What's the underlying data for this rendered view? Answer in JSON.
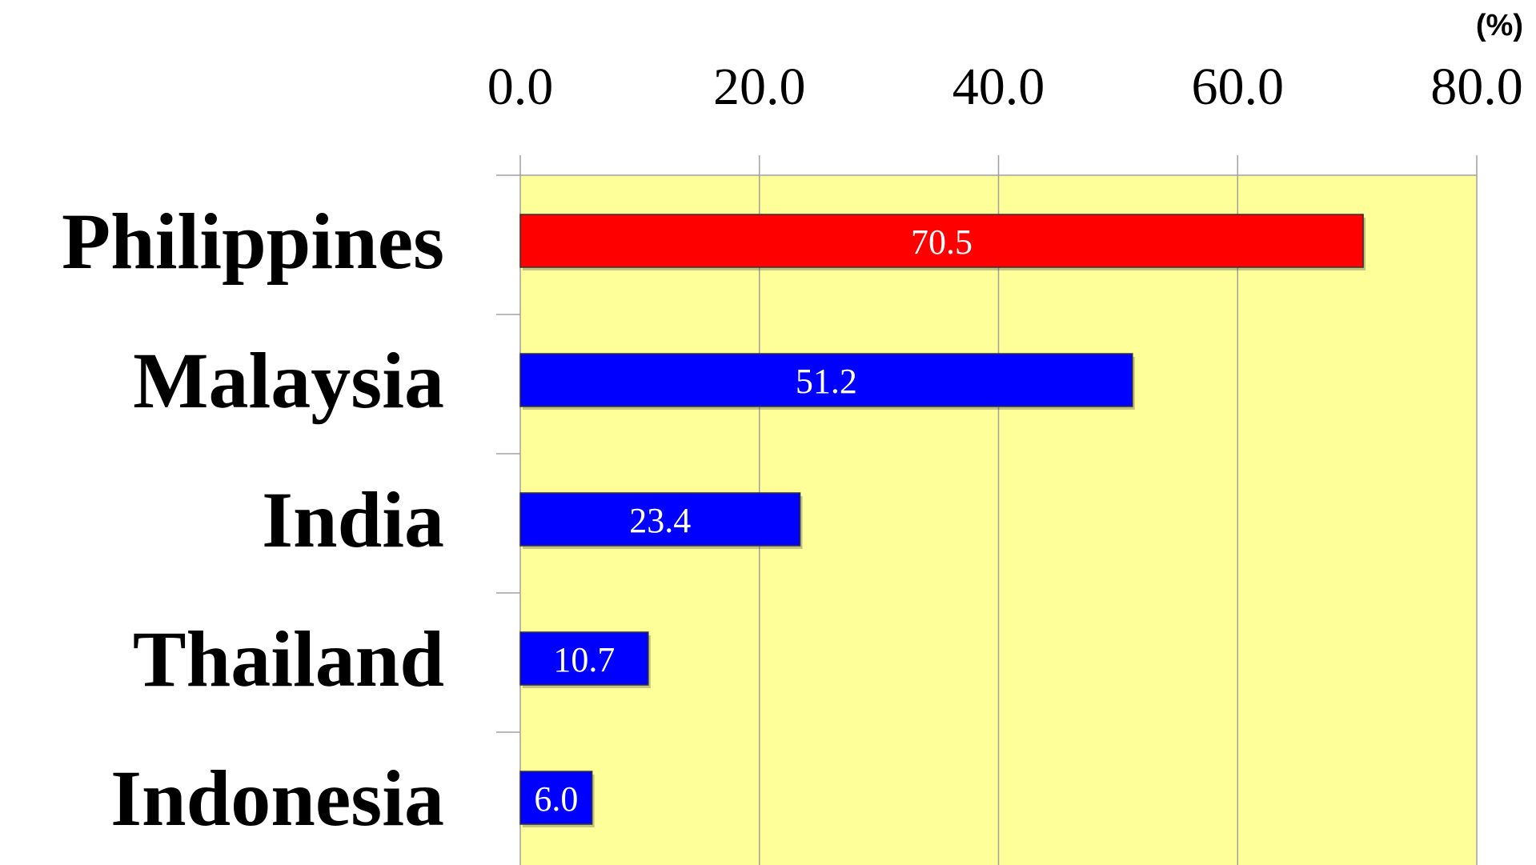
{
  "chart_data": {
    "type": "bar",
    "orientation": "horizontal",
    "categories": [
      "Philippines",
      "Malaysia",
      "India",
      "Thailand",
      "Indonesia"
    ],
    "values": [
      70.5,
      51.2,
      23.4,
      10.7,
      6.0
    ],
    "data_labels": [
      "70.5",
      "51.2",
      "23.4",
      "10.7",
      "6.0"
    ],
    "unit": "(%)",
    "xlim": [
      0,
      80
    ],
    "x_ticks": [
      "0.0",
      "20.0",
      "40.0",
      "60.0",
      "80.0"
    ],
    "x_axis_position": "top",
    "grid": true,
    "legend": "none",
    "colors": {
      "plot_background": "#ffff99",
      "highlight_bar": "#ff0000",
      "bar": "#0000ff",
      "grid": "#a0a0a0",
      "data_label": "#ffffff"
    },
    "highlight_index": 0
  }
}
